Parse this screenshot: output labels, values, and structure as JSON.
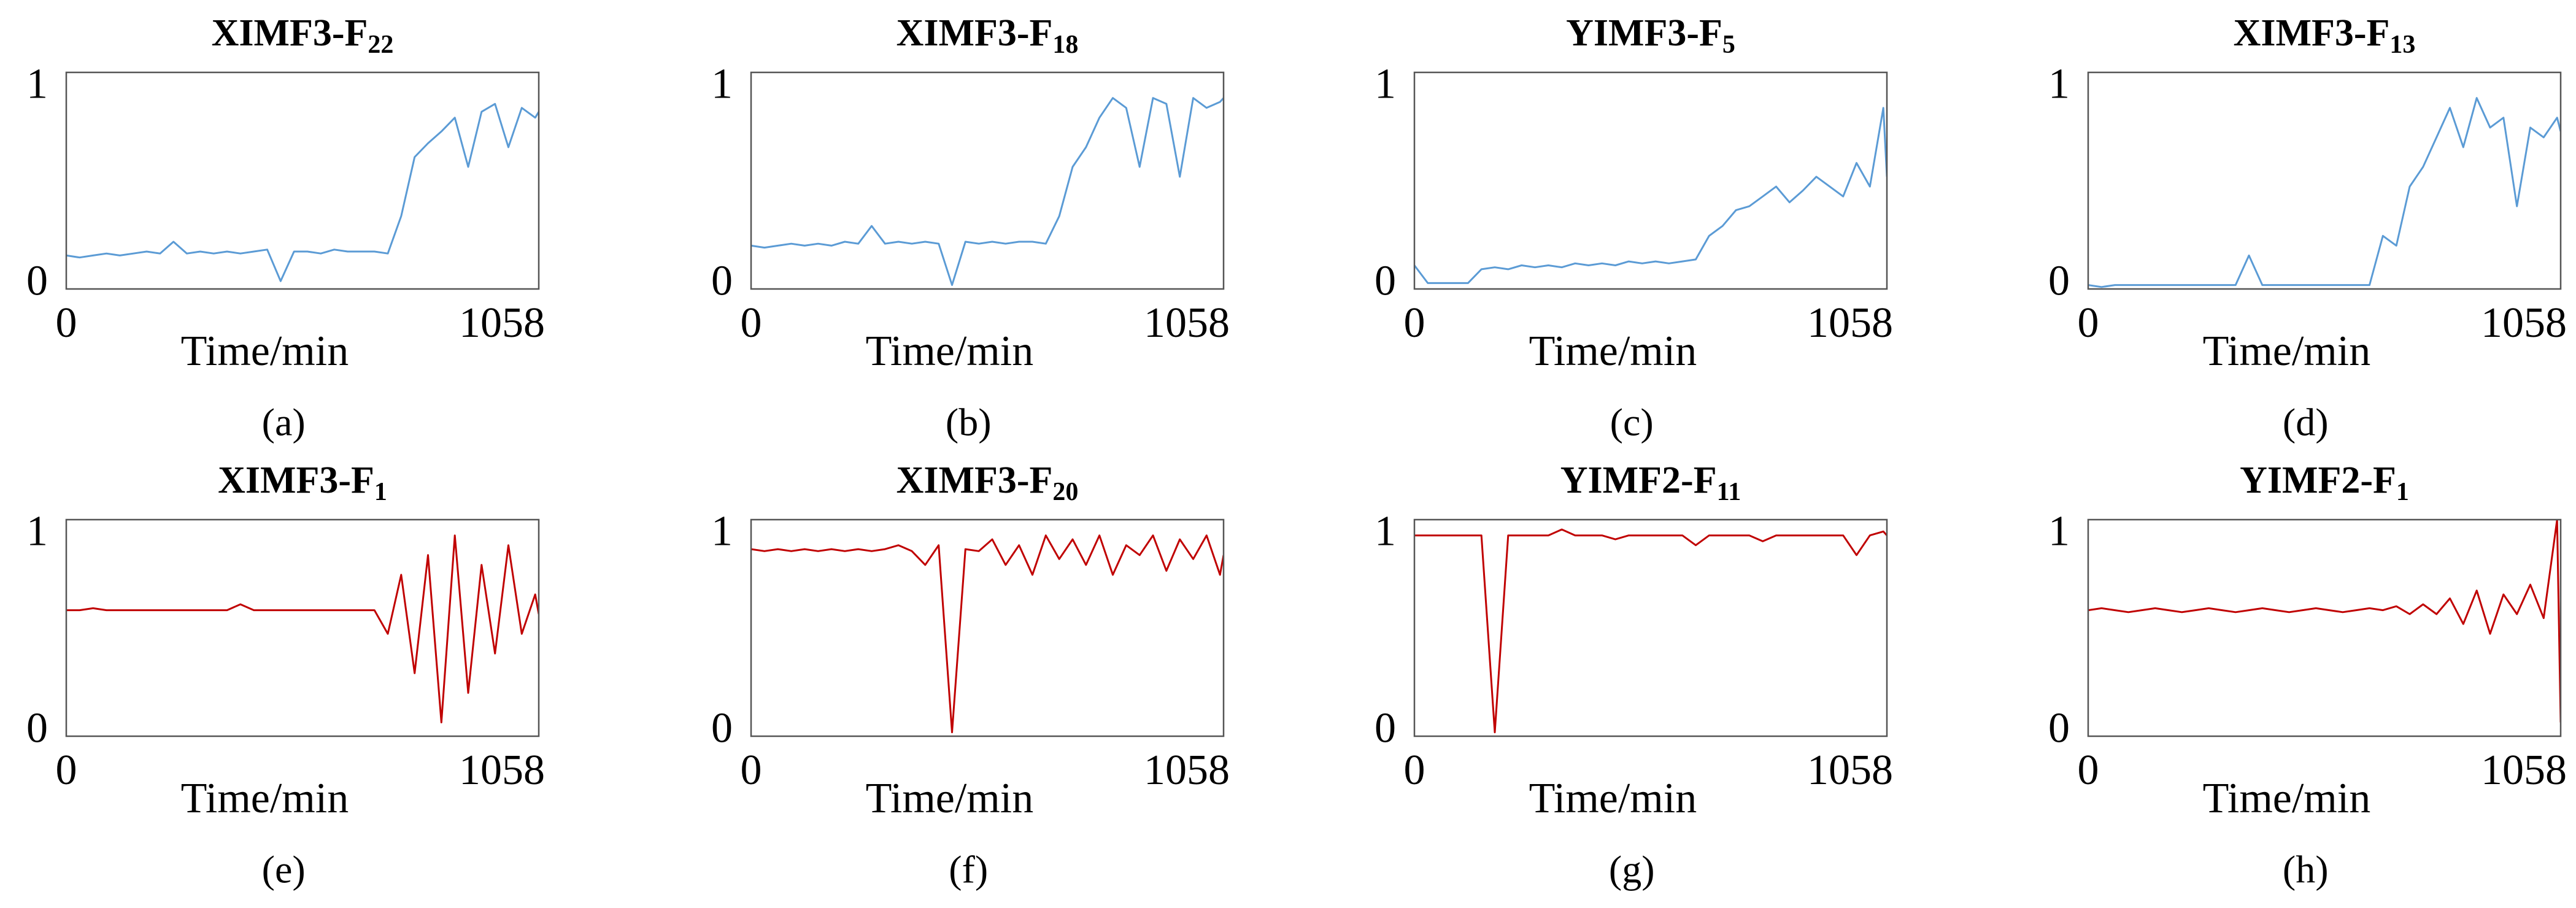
{
  "chart_data": [
    {
      "type": "line",
      "title": "XIMF3-F",
      "title_subscript": "22",
      "caption": "(a)",
      "xlabel": "Time/min",
      "color": "#5b9bd5",
      "x": [
        0,
        30,
        60,
        90,
        120,
        150,
        180,
        210,
        240,
        270,
        300,
        330,
        360,
        390,
        420,
        450,
        480,
        510,
        540,
        570,
        600,
        630,
        660,
        690,
        720,
        750,
        780,
        810,
        840,
        870,
        900,
        930,
        960,
        990,
        1020,
        1050,
        1058
      ],
      "values": [
        0.15,
        0.14,
        0.15,
        0.16,
        0.15,
        0.16,
        0.17,
        0.16,
        0.22,
        0.16,
        0.17,
        0.16,
        0.17,
        0.16,
        0.17,
        0.18,
        0.02,
        0.17,
        0.17,
        0.16,
        0.18,
        0.17,
        0.17,
        0.17,
        0.16,
        0.35,
        0.65,
        0.72,
        0.78,
        0.85,
        0.6,
        0.88,
        0.92,
        0.7,
        0.9,
        0.85,
        0.88
      ],
      "xlim": [
        0,
        1058
      ],
      "xticks": [
        0,
        1058
      ],
      "ylim": [
        -0.02,
        1.08
      ],
      "yticks": [
        0,
        1
      ]
    },
    {
      "type": "line",
      "title": "XIMF3-F",
      "title_subscript": "18",
      "caption": "(b)",
      "xlabel": "Time/min",
      "color": "#5b9bd5",
      "x": [
        0,
        30,
        60,
        90,
        120,
        150,
        180,
        210,
        240,
        270,
        300,
        330,
        360,
        390,
        420,
        450,
        480,
        510,
        540,
        570,
        600,
        630,
        660,
        690,
        720,
        750,
        780,
        810,
        840,
        870,
        900,
        930,
        960,
        990,
        1020,
        1050,
        1058
      ],
      "values": [
        0.2,
        0.19,
        0.2,
        0.21,
        0.2,
        0.21,
        0.2,
        0.22,
        0.21,
        0.3,
        0.21,
        0.22,
        0.21,
        0.22,
        0.21,
        0.0,
        0.22,
        0.21,
        0.22,
        0.21,
        0.22,
        0.22,
        0.21,
        0.35,
        0.6,
        0.7,
        0.85,
        0.95,
        0.9,
        0.6,
        0.95,
        0.92,
        0.55,
        0.95,
        0.9,
        0.93,
        0.95
      ],
      "xlim": [
        0,
        1058
      ],
      "xticks": [
        0,
        1058
      ],
      "ylim": [
        -0.02,
        1.08
      ],
      "yticks": [
        0,
        1
      ]
    },
    {
      "type": "line",
      "title": "YIMF3-F",
      "title_subscript": "5",
      "caption": "(c)",
      "xlabel": "Time/min",
      "color": "#5b9bd5",
      "x": [
        0,
        30,
        60,
        90,
        120,
        150,
        180,
        210,
        240,
        270,
        300,
        330,
        360,
        390,
        420,
        450,
        480,
        510,
        540,
        570,
        600,
        630,
        660,
        690,
        720,
        750,
        780,
        810,
        840,
        870,
        900,
        930,
        960,
        990,
        1020,
        1050,
        1058
      ],
      "values": [
        0.1,
        0.01,
        0.01,
        0.01,
        0.01,
        0.08,
        0.09,
        0.08,
        0.1,
        0.09,
        0.1,
        0.09,
        0.11,
        0.1,
        0.11,
        0.1,
        0.12,
        0.11,
        0.12,
        0.11,
        0.12,
        0.13,
        0.25,
        0.3,
        0.38,
        0.4,
        0.45,
        0.5,
        0.42,
        0.48,
        0.55,
        0.5,
        0.45,
        0.62,
        0.5,
        0.9,
        0.55
      ],
      "xlim": [
        0,
        1058
      ],
      "xticks": [
        0,
        1058
      ],
      "ylim": [
        -0.02,
        1.08
      ],
      "yticks": [
        0,
        1
      ]
    },
    {
      "type": "line",
      "title": "XIMF3-F",
      "title_subscript": "13",
      "caption": "(d)",
      "xlabel": "Time/min",
      "color": "#5b9bd5",
      "x": [
        0,
        30,
        60,
        90,
        120,
        150,
        180,
        210,
        240,
        270,
        300,
        330,
        360,
        390,
        420,
        450,
        480,
        510,
        540,
        570,
        600,
        630,
        660,
        690,
        720,
        750,
        780,
        810,
        840,
        870,
        900,
        930,
        960,
        990,
        1020,
        1050,
        1058
      ],
      "values": [
        0.0,
        -0.01,
        0.0,
        0.0,
        0.0,
        0.0,
        0.0,
        0.0,
        0.0,
        0.0,
        0.0,
        0.0,
        0.15,
        0.0,
        0.0,
        0.0,
        0.0,
        0.0,
        0.0,
        0.0,
        0.0,
        0.0,
        0.25,
        0.2,
        0.5,
        0.6,
        0.75,
        0.9,
        0.7,
        0.95,
        0.8,
        0.85,
        0.4,
        0.8,
        0.75,
        0.85,
        0.78
      ],
      "xlim": [
        0,
        1058
      ],
      "xticks": [
        0,
        1058
      ],
      "ylim": [
        -0.02,
        1.08
      ],
      "yticks": [
        0,
        1
      ]
    },
    {
      "type": "line",
      "title": "XIMF3-F",
      "title_subscript": "1",
      "caption": "(e)",
      "xlabel": "Time/min",
      "color": "#c00000",
      "x": [
        0,
        30,
        60,
        90,
        120,
        150,
        180,
        210,
        240,
        270,
        300,
        330,
        360,
        390,
        420,
        450,
        480,
        510,
        540,
        570,
        600,
        630,
        660,
        690,
        720,
        750,
        780,
        810,
        840,
        870,
        900,
        930,
        960,
        990,
        1020,
        1050,
        1058
      ],
      "values": [
        0.62,
        0.62,
        0.63,
        0.62,
        0.62,
        0.62,
        0.62,
        0.62,
        0.62,
        0.62,
        0.62,
        0.62,
        0.62,
        0.65,
        0.62,
        0.62,
        0.62,
        0.62,
        0.62,
        0.62,
        0.62,
        0.62,
        0.62,
        0.62,
        0.5,
        0.8,
        0.3,
        0.9,
        0.05,
        1.0,
        0.2,
        0.85,
        0.4,
        0.95,
        0.5,
        0.7,
        0.6
      ],
      "xlim": [
        0,
        1058
      ],
      "xticks": [
        0,
        1058
      ],
      "ylim": [
        -0.02,
        1.08
      ],
      "yticks": [
        0,
        1
      ]
    },
    {
      "type": "line",
      "title": "XIMF3-F",
      "title_subscript": "20",
      "caption": "(f)",
      "xlabel": "Time/min",
      "color": "#c00000",
      "x": [
        0,
        30,
        60,
        90,
        120,
        150,
        180,
        210,
        240,
        270,
        300,
        330,
        360,
        390,
        420,
        450,
        480,
        510,
        540,
        570,
        600,
        630,
        660,
        690,
        720,
        750,
        780,
        810,
        840,
        870,
        900,
        930,
        960,
        990,
        1020,
        1050,
        1058
      ],
      "values": [
        0.93,
        0.92,
        0.93,
        0.92,
        0.93,
        0.92,
        0.93,
        0.92,
        0.93,
        0.92,
        0.93,
        0.95,
        0.92,
        0.85,
        0.95,
        0.0,
        0.93,
        0.92,
        0.98,
        0.85,
        0.95,
        0.8,
        1.0,
        0.88,
        0.98,
        0.85,
        1.0,
        0.8,
        0.95,
        0.9,
        1.0,
        0.82,
        0.98,
        0.88,
        1.0,
        0.8,
        0.9
      ],
      "xlim": [
        0,
        1058
      ],
      "xticks": [
        0,
        1058
      ],
      "ylim": [
        -0.02,
        1.08
      ],
      "yticks": [
        0,
        1
      ]
    },
    {
      "type": "line",
      "title": "YIMF2-F",
      "title_subscript": "11",
      "caption": "(g)",
      "xlabel": "Time/min",
      "color": "#c00000",
      "x": [
        0,
        30,
        60,
        90,
        120,
        150,
        180,
        210,
        240,
        270,
        300,
        330,
        360,
        390,
        420,
        450,
        480,
        510,
        540,
        570,
        600,
        630,
        660,
        690,
        720,
        750,
        780,
        810,
        840,
        870,
        900,
        930,
        960,
        990,
        1020,
        1050,
        1058
      ],
      "values": [
        1.0,
        1.0,
        1.0,
        1.0,
        1.0,
        1.0,
        0.0,
        1.0,
        1.0,
        1.0,
        1.0,
        1.03,
        1.0,
        1.0,
        1.0,
        0.98,
        1.0,
        1.0,
        1.0,
        1.0,
        1.0,
        0.95,
        1.0,
        1.0,
        1.0,
        1.0,
        0.97,
        1.0,
        1.0,
        1.0,
        1.0,
        1.0,
        1.0,
        0.9,
        1.0,
        1.02,
        1.0
      ],
      "xlim": [
        0,
        1058
      ],
      "xticks": [
        0,
        1058
      ],
      "ylim": [
        -0.02,
        1.08
      ],
      "yticks": [
        0,
        1
      ]
    },
    {
      "type": "line",
      "title": "YIMF2-F",
      "title_subscript": "1",
      "caption": "(h)",
      "xlabel": "Time/min",
      "color": "#c00000",
      "x": [
        0,
        30,
        60,
        90,
        120,
        150,
        180,
        210,
        240,
        270,
        300,
        330,
        360,
        390,
        420,
        450,
        480,
        510,
        540,
        570,
        600,
        630,
        660,
        690,
        720,
        750,
        780,
        810,
        840,
        870,
        900,
        930,
        960,
        990,
        1020,
        1050,
        1058
      ],
      "values": [
        0.62,
        0.63,
        0.62,
        0.61,
        0.62,
        0.63,
        0.62,
        0.61,
        0.62,
        0.63,
        0.62,
        0.61,
        0.62,
        0.63,
        0.62,
        0.61,
        0.62,
        0.63,
        0.62,
        0.61,
        0.62,
        0.63,
        0.62,
        0.64,
        0.6,
        0.65,
        0.6,
        0.68,
        0.55,
        0.72,
        0.5,
        0.7,
        0.6,
        0.75,
        0.58,
        1.08,
        0.05
      ],
      "xlim": [
        0,
        1058
      ],
      "xticks": [
        0,
        1058
      ],
      "ylim": [
        -0.02,
        1.08
      ],
      "yticks": [
        0,
        1
      ]
    }
  ]
}
